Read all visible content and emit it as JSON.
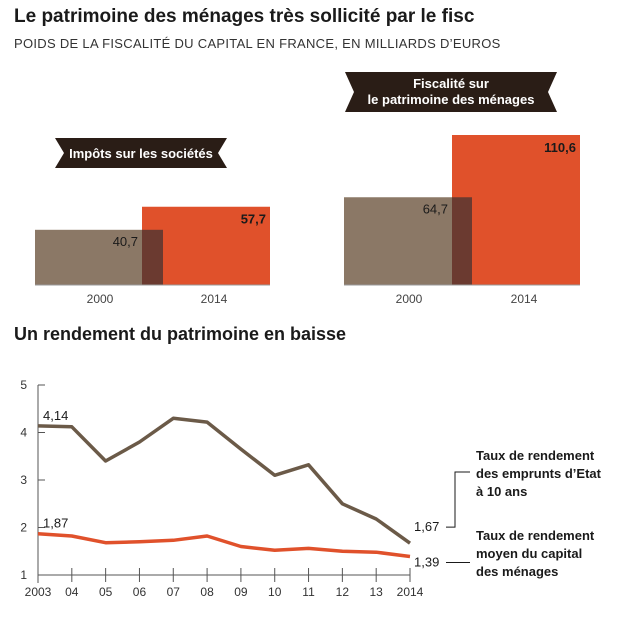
{
  "header": {
    "title": "Le patrimoine des ménages très sollicité par le fisc",
    "subtitle": "POIDS DE LA FISCALITÉ DU CAPITAL EN FRANCE, EN MILLIARDS D’EUROS"
  },
  "colors": {
    "year_2000": "#8b7866",
    "year_2014": "#e0512b",
    "overlap": "#6b3a30",
    "label_bg": "#2a1d16",
    "line_etat": "#6b5a48",
    "line_capital": "#e0512b",
    "axis": "#555555"
  },
  "chart_data": [
    {
      "type": "bar",
      "title": "Impôts sur les sociétés",
      "categories": [
        "2000",
        "2014"
      ],
      "values": [
        40.7,
        57.7
      ],
      "value_labels": [
        "40,7",
        "57,7"
      ]
    },
    {
      "type": "bar",
      "title": "Fiscalité sur le patrimoine des ménages",
      "title_lines": [
        "Fiscalité sur",
        "le patrimoine des ménages"
      ],
      "categories": [
        "2000",
        "2014"
      ],
      "values": [
        64.7,
        110.6
      ],
      "value_labels": [
        "64,7",
        "110,6"
      ]
    },
    {
      "type": "line",
      "title": "Un rendement du patrimoine en baisse",
      "x": [
        2003,
        2004,
        2005,
        2006,
        2007,
        2008,
        2009,
        2010,
        2011,
        2012,
        2013,
        2014
      ],
      "x_tick_labels": [
        "2003",
        "04",
        "05",
        "06",
        "07",
        "08",
        "09",
        "10",
        "11",
        "12",
        "13",
        "2014"
      ],
      "ylim": [
        1,
        5
      ],
      "y_ticks": [
        "1",
        "2",
        "3",
        "4",
        "5"
      ],
      "series": [
        {
          "name": "Taux de rendement des emprunts d’Etat à 10 ans",
          "name_lines": [
            "Taux de rendement",
            "des emprunts d’Etat",
            "à 10 ans"
          ],
          "values": [
            4.14,
            4.12,
            3.4,
            3.8,
            4.3,
            4.22,
            3.65,
            3.1,
            3.32,
            2.5,
            2.18,
            1.67
          ],
          "start_label": "4,14",
          "end_label": "1,67"
        },
        {
          "name": "Taux de rendement moyen du capital des ménages",
          "name_lines": [
            "Taux de rendement",
            "moyen du capital",
            "des ménages"
          ],
          "values": [
            1.87,
            1.82,
            1.68,
            1.7,
            1.73,
            1.82,
            1.6,
            1.52,
            1.56,
            1.5,
            1.48,
            1.39
          ],
          "start_label": "1,87",
          "end_label": "1,39"
        }
      ]
    }
  ]
}
